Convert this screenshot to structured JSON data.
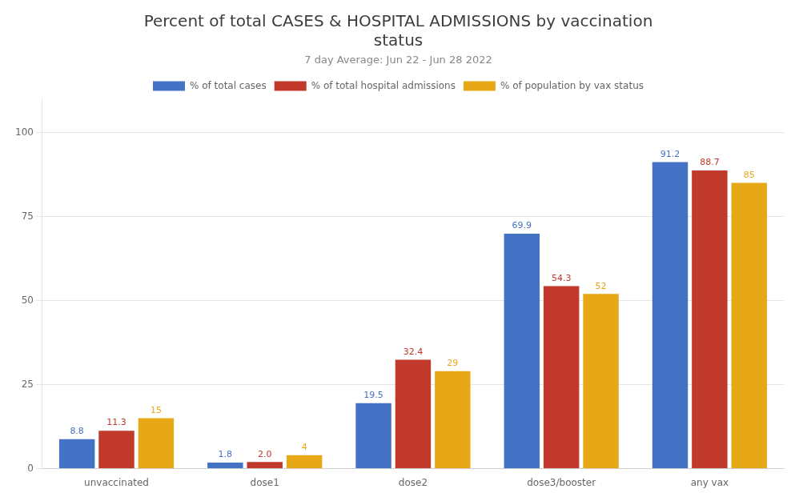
{
  "chart_data": {
    "type": "bar",
    "title": [
      "Percent of total CASES & HOSPITAL ADMISSIONS by vaccination",
      "status"
    ],
    "subtitle": "7 day Average: Jun 22 - Jun 28 2022",
    "categories": [
      "unvaccinated",
      "dose1",
      "dose2",
      "dose3/booster",
      "any vax"
    ],
    "series": [
      {
        "name": "% of total cases",
        "color": "#4472C4",
        "values": [
          8.8,
          1.8,
          19.5,
          69.9,
          91.2
        ]
      },
      {
        "name": "% of total hospital admissions",
        "color": "#C0392B",
        "values": [
          11.3,
          2.0,
          32.4,
          54.3,
          88.7
        ],
        "value_labels": [
          "11.3",
          "2.0",
          "32.4",
          "54.3",
          "88.7"
        ]
      },
      {
        "name": "% of population by vax status",
        "color": "#E6A817",
        "values": [
          15,
          4,
          29,
          52,
          85
        ]
      }
    ],
    "ylim": [
      0,
      110
    ],
    "yticks": [
      0,
      25,
      50,
      75,
      100
    ],
    "grid": true,
    "legend": "top",
    "data_labels": true
  }
}
